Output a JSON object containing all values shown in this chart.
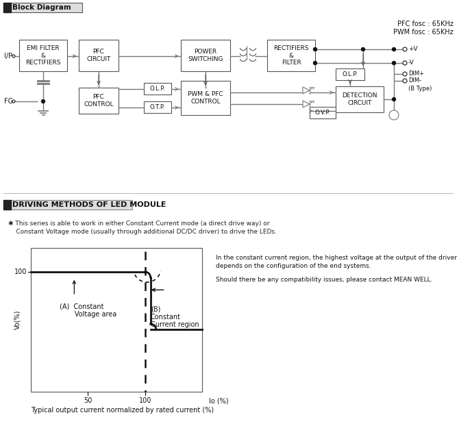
{
  "bg_color": "#ffffff",
  "text_color": "#000000",
  "line_color": "#777777",
  "dark_color": "#111111",
  "block_diagram_title": "Block Diagram",
  "pfc_fosc": "PFC fosc : 65KHz",
  "pwm_fosc": "PWM fosc : 65KHz",
  "driving_title": "DRIVING METHODS OF LED MODULE",
  "driving_text1": "✱ This series is able to work in either Constant Current mode (a direct drive way) or",
  "driving_text2": "    Constant Voltage mode (usually through additional DC/DC driver) to drive the LEDs.",
  "right_text1": "In the constant current region, the highest voltage at the output of the driver",
  "right_text2": "depends on the configuration of the end systems.",
  "right_text3": "Should there be any compatibility issues, please contact MEAN WELL.",
  "bottom_text": "Typical output current normalized by rated current (%)",
  "ylabel": "Vo(%)",
  "xlabel": "Io (%)"
}
